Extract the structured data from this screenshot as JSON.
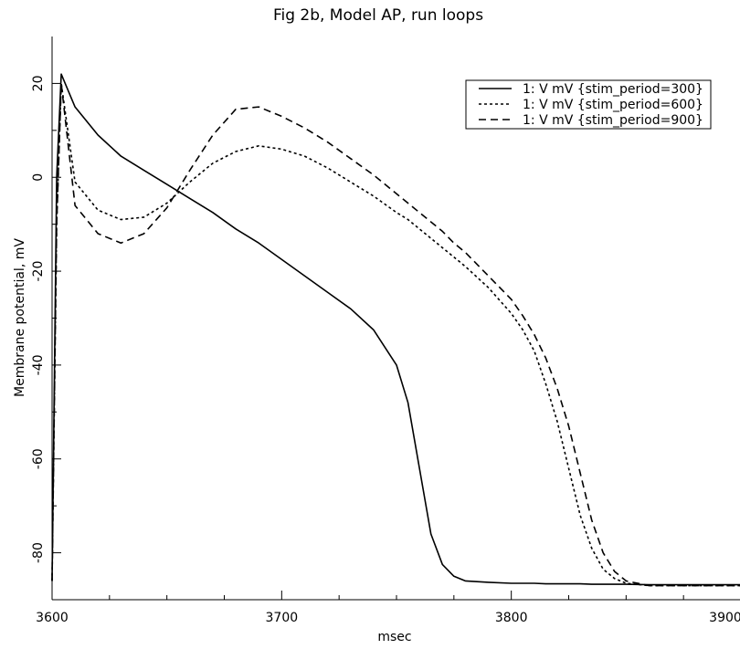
{
  "chart_data": {
    "type": "line",
    "title": "Fig 2b, Model AP, run loops",
    "xlabel": "msec",
    "ylabel": "Membrane potential, mV",
    "x": [
      3600,
      3602,
      3604,
      3610,
      3620,
      3630,
      3640,
      3650,
      3660,
      3670,
      3680,
      3690,
      3700,
      3710,
      3720,
      3730,
      3740,
      3750,
      3755,
      3760,
      3765,
      3770,
      3775,
      3780,
      3790,
      3800,
      3805,
      3810,
      3815,
      3820,
      3825,
      3830,
      3835,
      3840,
      3845,
      3850,
      3860,
      3880,
      3900
    ],
    "series": [
      {
        "name": "1: V mV {stim_period=300}",
        "color": "#000000",
        "dash": "none",
        "values": [
          -86,
          0,
          22,
          15,
          9,
          4.5,
          1.5,
          -1.5,
          -4.5,
          -7.5,
          -11,
          -14,
          -17.5,
          -21,
          -24.5,
          -28,
          -32.5,
          -40,
          -48,
          -62,
          -76,
          -82.5,
          -85,
          -86,
          -86.3,
          -86.5,
          -86.5,
          -86.5,
          -86.6,
          -86.6,
          -86.6,
          -86.6,
          -86.7,
          -86.7,
          -86.7,
          -86.7,
          -86.8,
          -86.8,
          -86.8
        ]
      },
      {
        "name": "1: V mV {stim_period=600}",
        "color": "#000000",
        "dash": "3,3",
        "values": [
          -86,
          -10,
          20,
          -1,
          -7,
          -9,
          -8.5,
          -5.5,
          -1,
          3,
          5.5,
          6.7,
          6,
          4.5,
          2,
          -1,
          -4,
          -7.5,
          -9,
          -11,
          -13,
          -15,
          -17,
          -19,
          -23.5,
          -29,
          -32.5,
          -37,
          -44,
          -52,
          -62,
          -72,
          -79,
          -83.5,
          -85.5,
          -86.5,
          -87,
          -87,
          -87
        ]
      },
      {
        "name": "1: V mV {stim_period=900}",
        "color": "#000000",
        "dash": "8,5",
        "values": [
          -86,
          -10,
          20,
          -6,
          -12,
          -14,
          -12,
          -6.5,
          1.5,
          9,
          14.5,
          15,
          13,
          10.5,
          7.5,
          4,
          0.5,
          -3.5,
          -5.5,
          -7.5,
          -9.5,
          -11.5,
          -14,
          -16,
          -21,
          -26,
          -29.5,
          -33.5,
          -38.5,
          -45,
          -53,
          -63,
          -73,
          -80,
          -84,
          -86,
          -87,
          -87,
          -87
        ]
      }
    ],
    "xlim": [
      3600,
      3900
    ],
    "ylim": [
      -90,
      30
    ],
    "xticks": [
      3600,
      3700,
      3800,
      3900
    ],
    "xminorticks": [
      3625,
      3650,
      3675,
      3725,
      3750,
      3775,
      3825,
      3850,
      3875
    ],
    "yticks": [
      -80,
      -60,
      -40,
      -20,
      0,
      20
    ],
    "yminorticks": [
      -70,
      -50,
      -30,
      -10,
      10
    ],
    "grid": false,
    "legend": "upper right"
  }
}
